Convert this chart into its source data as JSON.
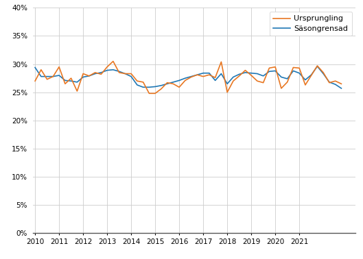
{
  "ursprungling": [
    0.27,
    0.29,
    0.273,
    0.278,
    0.295,
    0.265,
    0.275,
    0.252,
    0.283,
    0.279,
    0.285,
    0.282,
    0.295,
    0.305,
    0.285,
    0.283,
    0.283,
    0.27,
    0.268,
    0.248,
    0.248,
    0.256,
    0.267,
    0.265,
    0.259,
    0.271,
    0.277,
    0.281,
    0.278,
    0.281,
    0.276,
    0.304,
    0.25,
    0.27,
    0.279,
    0.289,
    0.28,
    0.27,
    0.267,
    0.293,
    0.295,
    0.257,
    0.268,
    0.294,
    0.293,
    0.263,
    0.28,
    0.297,
    0.285,
    0.267,
    0.27,
    0.265
  ],
  "sasongrensad": [
    0.294,
    0.278,
    0.278,
    0.278,
    0.28,
    0.271,
    0.27,
    0.268,
    0.277,
    0.279,
    0.283,
    0.285,
    0.289,
    0.29,
    0.287,
    0.283,
    0.278,
    0.263,
    0.259,
    0.259,
    0.26,
    0.262,
    0.265,
    0.268,
    0.271,
    0.275,
    0.278,
    0.281,
    0.284,
    0.284,
    0.271,
    0.283,
    0.265,
    0.277,
    0.282,
    0.285,
    0.284,
    0.283,
    0.279,
    0.287,
    0.288,
    0.277,
    0.274,
    0.288,
    0.284,
    0.272,
    0.281,
    0.296,
    0.283,
    0.268,
    0.264,
    0.257
  ],
  "year_start": 2010,
  "quarters_per_year": 4,
  "n_points": 52,
  "ylim": [
    0.0,
    0.4
  ],
  "yticks": [
    0.0,
    0.05,
    0.1,
    0.15,
    0.2,
    0.25,
    0.3,
    0.35,
    0.4
  ],
  "xtick_years": [
    2010,
    2011,
    2012,
    2013,
    2014,
    2015,
    2016,
    2017,
    2018,
    2019,
    2020,
    2021
  ],
  "color_ursprungling": "#E87722",
  "color_sasongrensad": "#1F77B4",
  "legend_ursprungling": "Ursprungling",
  "legend_sasongrensad": "Säsongrensad",
  "linewidth": 1.2,
  "background_color": "#ffffff",
  "grid_color": "#cccccc",
  "spine_color": "#888888",
  "tick_fontsize": 7.5,
  "legend_fontsize": 8.0
}
